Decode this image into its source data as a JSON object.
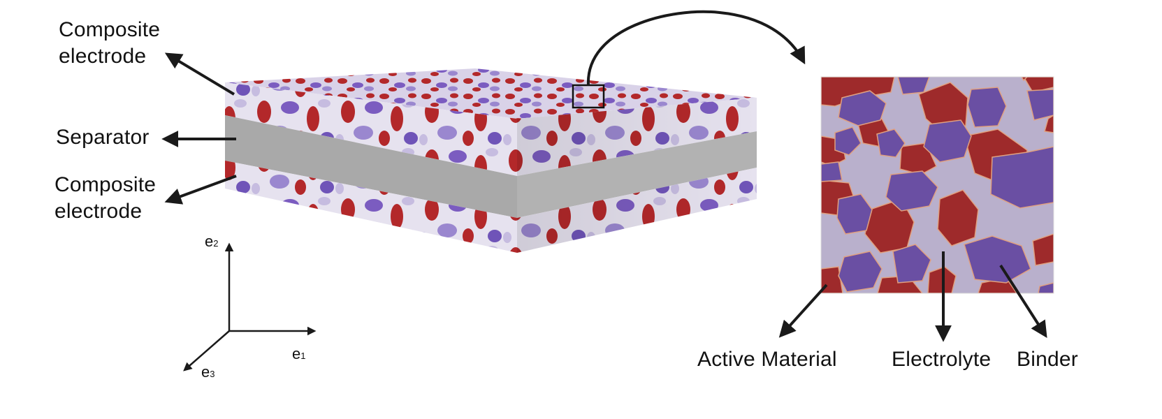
{
  "labels": {
    "electrode_top_line1": "Composite",
    "electrode_top_line2": "electrode",
    "separator": "Separator",
    "electrode_bottom_line1": "Composite",
    "electrode_bottom_line2": "electrode",
    "active_material": "Active Material",
    "electrolyte": "Electrolyte",
    "binder": "Binder"
  },
  "axes": {
    "e1": {
      "base": "e",
      "sub": "1"
    },
    "e2": {
      "base": "e",
      "sub": "2"
    },
    "e3": {
      "base": "e",
      "sub": "3"
    }
  },
  "colors": {
    "active_material": "#9e2a2b",
    "binder": "#6a4fa3",
    "electrolyte": "#b9b0cc",
    "separator": "#a8a8a8",
    "arrow": "#1a1a1a"
  }
}
